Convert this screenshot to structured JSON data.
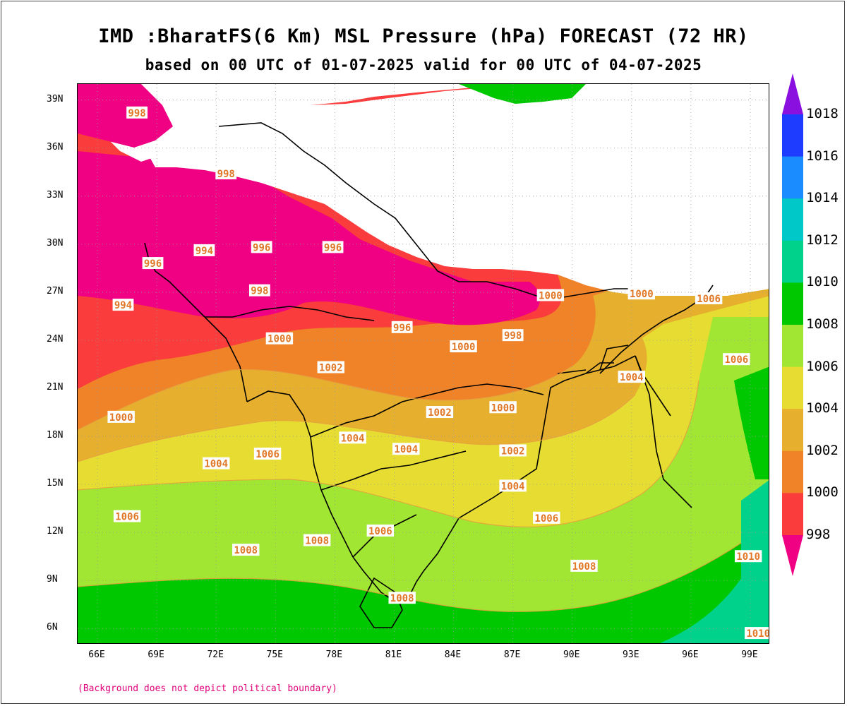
{
  "title": {
    "line1": "IMD :BharatFS(6 Km) MSL Pressure (hPa) FORECAST (72 HR)",
    "line2": "based on 00 UTC of 01-07-2025 valid for 00 UTC of 04-07-2025"
  },
  "footnote": "(Background does not depict political boundary)",
  "map": {
    "lat_labels": [
      "39N",
      "36N",
      "33N",
      "30N",
      "27N",
      "24N",
      "21N",
      "18N",
      "15N",
      "12N",
      "9N",
      "6N"
    ],
    "lon_labels": [
      "66E",
      "69E",
      "72E",
      "75E",
      "78E",
      "81E",
      "84E",
      "87E",
      "90E",
      "93E",
      "96E",
      "99E"
    ],
    "lat_range": [
      5,
      40
    ],
    "lon_range": [
      65,
      100
    ],
    "gridlines": "dotted",
    "isobar_labels": [
      {
        "text": "998",
        "lon": 68.0,
        "lat": 38.2
      },
      {
        "text": "998",
        "lon": 72.5,
        "lat": 34.4
      },
      {
        "text": "996",
        "lon": 68.8,
        "lat": 28.8
      },
      {
        "text": "994",
        "lon": 67.3,
        "lat": 26.2
      },
      {
        "text": "994",
        "lon": 71.4,
        "lat": 29.6
      },
      {
        "text": "998",
        "lon": 74.2,
        "lat": 27.1
      },
      {
        "text": "996",
        "lon": 74.3,
        "lat": 29.8
      },
      {
        "text": "996",
        "lon": 77.9,
        "lat": 29.8
      },
      {
        "text": "996",
        "lon": 81.4,
        "lat": 24.8
      },
      {
        "text": "998",
        "lon": 87.0,
        "lat": 24.3
      },
      {
        "text": "1000",
        "lon": 75.2,
        "lat": 24.1
      },
      {
        "text": "1000",
        "lon": 84.5,
        "lat": 23.6
      },
      {
        "text": "1002",
        "lon": 77.8,
        "lat": 22.3
      },
      {
        "text": "1002",
        "lon": 83.3,
        "lat": 19.5
      },
      {
        "text": "1000",
        "lon": 86.5,
        "lat": 19.8
      },
      {
        "text": "1000",
        "lon": 67.2,
        "lat": 19.2
      },
      {
        "text": "1004",
        "lon": 78.9,
        "lat": 17.9
      },
      {
        "text": "1004",
        "lon": 81.6,
        "lat": 17.2
      },
      {
        "text": "1002",
        "lon": 87.0,
        "lat": 17.1
      },
      {
        "text": "1004",
        "lon": 72.0,
        "lat": 16.3
      },
      {
        "text": "1006",
        "lon": 74.6,
        "lat": 16.9
      },
      {
        "text": "1004",
        "lon": 87.0,
        "lat": 14.9
      },
      {
        "text": "1006",
        "lon": 67.5,
        "lat": 13.0
      },
      {
        "text": "1006",
        "lon": 80.3,
        "lat": 12.1
      },
      {
        "text": "1006",
        "lon": 88.7,
        "lat": 12.9
      },
      {
        "text": "1008",
        "lon": 73.5,
        "lat": 10.9
      },
      {
        "text": "1008",
        "lon": 77.1,
        "lat": 11.5
      },
      {
        "text": "1008",
        "lon": 90.6,
        "lat": 9.9
      },
      {
        "text": "1008",
        "lon": 81.4,
        "lat": 7.9
      },
      {
        "text": "1010",
        "lon": 98.9,
        "lat": 10.5
      },
      {
        "text": "1010",
        "lon": 99.4,
        "lat": 5.7
      },
      {
        "text": "1004",
        "lon": 93.0,
        "lat": 21.7
      },
      {
        "text": "1006",
        "lon": 96.9,
        "lat": 26.6
      },
      {
        "text": "1006",
        "lon": 98.3,
        "lat": 22.8
      },
      {
        "text": "1000",
        "lon": 93.5,
        "lat": 26.9
      },
      {
        "text": "1000",
        "lon": 88.9,
        "lat": 26.8
      }
    ]
  },
  "colorbar": {
    "labels": [
      "1018",
      "1016",
      "1014",
      "1012",
      "1010",
      "1008",
      "1006",
      "1004",
      "1002",
      "1000",
      "998"
    ],
    "colors": {
      "above_1018": "#8a10e0",
      "1016_1018": "#1e3cff",
      "1014_1016": "#1a8cff",
      "1012_1014": "#00c8c8",
      "1010_1012": "#00d28c",
      "1008_1010": "#00c800",
      "1006_1008": "#a0e632",
      "1004_1006": "#e6dc32",
      "1002_1004": "#e6af2d",
      "1000_1002": "#f08228",
      "998_1000": "#fa3c3c",
      "below_998": "#f00082"
    }
  }
}
